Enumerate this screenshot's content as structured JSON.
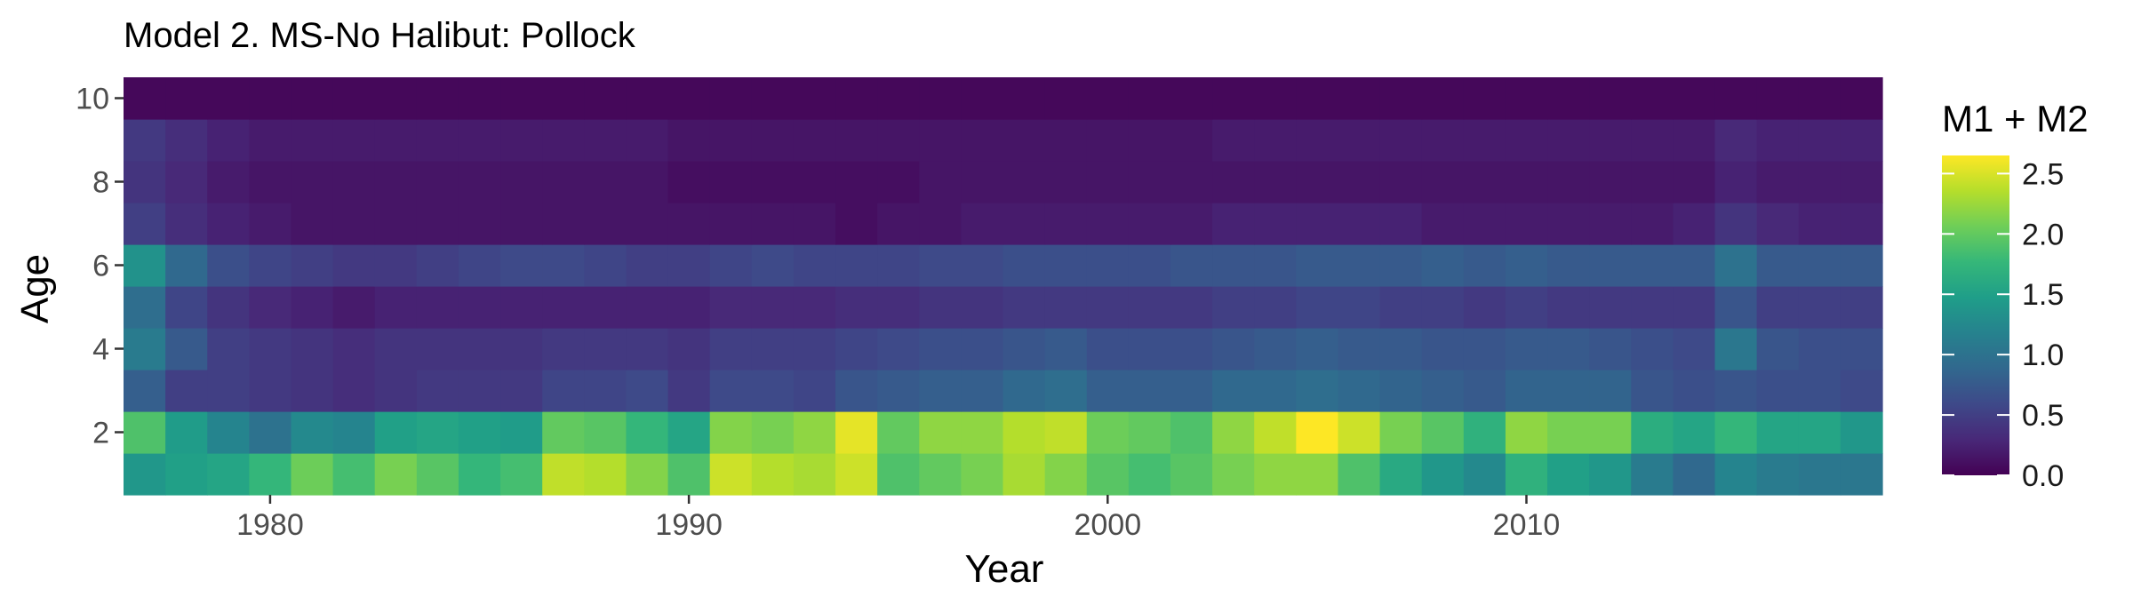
{
  "chart_data": {
    "type": "heatmap",
    "title": "Model 2. MS-No Halibut: Pollock",
    "xlabel": "Year",
    "ylabel": "Age",
    "x_range": [
      1976.5,
      2018.5
    ],
    "y_range": [
      0.5,
      10.5
    ],
    "x_ticks": [
      1980,
      1990,
      2000,
      2010
    ],
    "y_ticks": [
      2,
      4,
      6,
      8,
      10
    ],
    "years": [
      1977,
      1978,
      1979,
      1980,
      1981,
      1982,
      1983,
      1984,
      1985,
      1986,
      1987,
      1988,
      1989,
      1990,
      1991,
      1992,
      1993,
      1994,
      1995,
      1996,
      1997,
      1998,
      1999,
      2000,
      2001,
      2002,
      2003,
      2004,
      2005,
      2006,
      2007,
      2008,
      2009,
      2010,
      2011,
      2012,
      2013,
      2014,
      2015,
      2016,
      2017,
      2018
    ],
    "ages": [
      1,
      2,
      3,
      4,
      5,
      6,
      7,
      8,
      9,
      10
    ],
    "legend": {
      "title": "M1 + M2",
      "ticks": [
        0.0,
        0.5,
        1.0,
        1.5,
        2.0,
        2.5
      ],
      "tick_labels": [
        "0.0",
        "0.5",
        "1.0",
        "1.5",
        "2.0",
        "2.5"
      ],
      "range": [
        0,
        2.65
      ],
      "position": "right"
    },
    "colorscale": [
      "#440154",
      "#482878",
      "#3e4989",
      "#31688e",
      "#26828e",
      "#1f9e89",
      "#35b779",
      "#6ece58",
      "#b5de2b",
      "#fde725"
    ],
    "values_by_age": {
      "1": [
        1.4,
        1.5,
        1.55,
        1.75,
        2.05,
        1.85,
        2.1,
        1.95,
        1.75,
        1.85,
        2.4,
        2.35,
        2.15,
        1.9,
        2.45,
        2.35,
        2.3,
        2.45,
        1.9,
        2.0,
        2.1,
        2.3,
        2.15,
        1.95,
        1.85,
        1.95,
        2.1,
        2.2,
        2.2,
        1.9,
        1.6,
        1.4,
        1.25,
        1.7,
        1.5,
        1.4,
        1.1,
        0.9,
        1.2,
        1.1,
        1.05,
        1.05
      ],
      "2": [
        1.9,
        1.45,
        1.2,
        1.0,
        1.25,
        1.2,
        1.5,
        1.55,
        1.5,
        1.45,
        2.0,
        1.95,
        1.75,
        1.55,
        2.15,
        2.1,
        2.2,
        2.55,
        2.0,
        2.2,
        2.2,
        2.35,
        2.4,
        2.05,
        2.0,
        1.9,
        2.2,
        2.4,
        2.65,
        2.45,
        2.1,
        1.95,
        1.7,
        2.2,
        2.1,
        2.1,
        1.65,
        1.55,
        1.75,
        1.55,
        1.55,
        1.4
      ],
      "3": [
        0.8,
        0.5,
        0.5,
        0.45,
        0.4,
        0.35,
        0.4,
        0.45,
        0.45,
        0.45,
        0.55,
        0.55,
        0.6,
        0.45,
        0.6,
        0.6,
        0.55,
        0.7,
        0.75,
        0.8,
        0.8,
        0.9,
        0.95,
        0.8,
        0.8,
        0.8,
        0.9,
        0.9,
        0.95,
        0.9,
        0.85,
        0.8,
        0.75,
        0.85,
        0.85,
        0.85,
        0.7,
        0.65,
        0.7,
        0.65,
        0.65,
        0.6
      ],
      "4": [
        1.1,
        0.75,
        0.5,
        0.45,
        0.4,
        0.35,
        0.4,
        0.4,
        0.4,
        0.4,
        0.45,
        0.45,
        0.45,
        0.4,
        0.5,
        0.5,
        0.5,
        0.55,
        0.6,
        0.65,
        0.65,
        0.7,
        0.75,
        0.65,
        0.65,
        0.65,
        0.7,
        0.75,
        0.8,
        0.75,
        0.75,
        0.7,
        0.7,
        0.75,
        0.75,
        0.7,
        0.65,
        0.6,
        1.05,
        0.7,
        0.65,
        0.65
      ],
      "5": [
        0.95,
        0.55,
        0.4,
        0.3,
        0.25,
        0.2,
        0.25,
        0.25,
        0.25,
        0.25,
        0.25,
        0.25,
        0.25,
        0.25,
        0.3,
        0.3,
        0.3,
        0.35,
        0.35,
        0.4,
        0.4,
        0.45,
        0.45,
        0.45,
        0.45,
        0.45,
        0.5,
        0.5,
        0.55,
        0.55,
        0.5,
        0.5,
        0.45,
        0.5,
        0.45,
        0.45,
        0.45,
        0.45,
        0.7,
        0.5,
        0.5,
        0.5
      ],
      "6": [
        1.35,
        0.9,
        0.65,
        0.55,
        0.5,
        0.45,
        0.45,
        0.5,
        0.55,
        0.6,
        0.6,
        0.55,
        0.5,
        0.5,
        0.55,
        0.6,
        0.55,
        0.55,
        0.55,
        0.6,
        0.6,
        0.65,
        0.65,
        0.65,
        0.65,
        0.7,
        0.7,
        0.7,
        0.75,
        0.75,
        0.75,
        0.8,
        0.75,
        0.8,
        0.75,
        0.75,
        0.75,
        0.75,
        1.0,
        0.75,
        0.75,
        0.75
      ],
      "7": [
        0.5,
        0.35,
        0.25,
        0.2,
        0.15,
        0.15,
        0.15,
        0.15,
        0.15,
        0.15,
        0.15,
        0.15,
        0.15,
        0.15,
        0.15,
        0.15,
        0.15,
        0.1,
        0.15,
        0.15,
        0.2,
        0.2,
        0.2,
        0.2,
        0.2,
        0.2,
        0.25,
        0.25,
        0.25,
        0.25,
        0.25,
        0.2,
        0.2,
        0.2,
        0.2,
        0.2,
        0.2,
        0.25,
        0.4,
        0.3,
        0.25,
        0.25
      ],
      "8": [
        0.4,
        0.3,
        0.2,
        0.15,
        0.15,
        0.15,
        0.15,
        0.15,
        0.15,
        0.15,
        0.15,
        0.15,
        0.15,
        0.1,
        0.1,
        0.1,
        0.1,
        0.1,
        0.1,
        0.15,
        0.15,
        0.15,
        0.15,
        0.15,
        0.15,
        0.15,
        0.15,
        0.15,
        0.15,
        0.15,
        0.15,
        0.15,
        0.15,
        0.15,
        0.15,
        0.15,
        0.15,
        0.15,
        0.25,
        0.2,
        0.2,
        0.2
      ],
      "9": [
        0.45,
        0.35,
        0.25,
        0.2,
        0.2,
        0.2,
        0.2,
        0.2,
        0.2,
        0.2,
        0.2,
        0.2,
        0.2,
        0.15,
        0.15,
        0.15,
        0.15,
        0.15,
        0.15,
        0.15,
        0.15,
        0.15,
        0.15,
        0.15,
        0.15,
        0.15,
        0.2,
        0.2,
        0.2,
        0.2,
        0.2,
        0.2,
        0.2,
        0.2,
        0.2,
        0.2,
        0.2,
        0.2,
        0.3,
        0.25,
        0.25,
        0.25
      ],
      "10": [
        0.05,
        0.05,
        0.05,
        0.05,
        0.05,
        0.05,
        0.05,
        0.05,
        0.05,
        0.05,
        0.05,
        0.05,
        0.05,
        0.05,
        0.05,
        0.05,
        0.05,
        0.05,
        0.05,
        0.05,
        0.05,
        0.05,
        0.05,
        0.05,
        0.05,
        0.05,
        0.05,
        0.05,
        0.05,
        0.05,
        0.05,
        0.05,
        0.05,
        0.05,
        0.05,
        0.05,
        0.05,
        0.05,
        0.05,
        0.05,
        0.05,
        0.05
      ]
    }
  }
}
